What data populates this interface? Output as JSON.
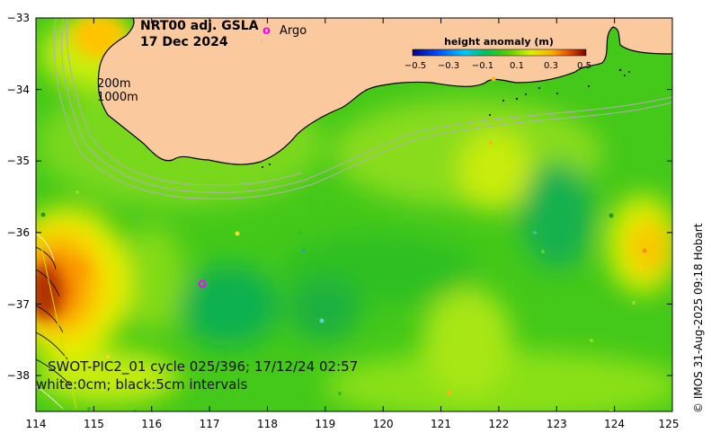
{
  "map": {
    "title_line1": "NRT00 adj. GSLA",
    "title_line2": "17 Dec 2024",
    "argo_marker": "o",
    "argo_label": "Argo",
    "isobath_200": "200m",
    "isobath_1000": "1000m",
    "swot_line1": "SWOT-PIC2_01 cycle 025/396; 17/12/24 02:57",
    "swot_line2": "white:0cm; black:5cm intervals",
    "copyright": "© IMOS 31-Aug-2025 09:18 Hobart",
    "colors": {
      "land": "#fac99e",
      "argo": "#ff00ff",
      "isobath": "#b0b0b0",
      "coast": "#000000"
    }
  },
  "colorbar": {
    "title": "height anomaly (m)",
    "ticks": [
      "−0.5",
      "−0.3",
      "−0.1",
      "0.1",
      "0.3",
      "0.5"
    ]
  },
  "axes": {
    "x_ticks": [
      "114",
      "115",
      "116",
      "117",
      "118",
      "119",
      "120",
      "121",
      "122",
      "123",
      "124",
      "125"
    ],
    "y_ticks": [
      "−33",
      "−34",
      "−35",
      "−36",
      "−37",
      "−38"
    ]
  }
}
